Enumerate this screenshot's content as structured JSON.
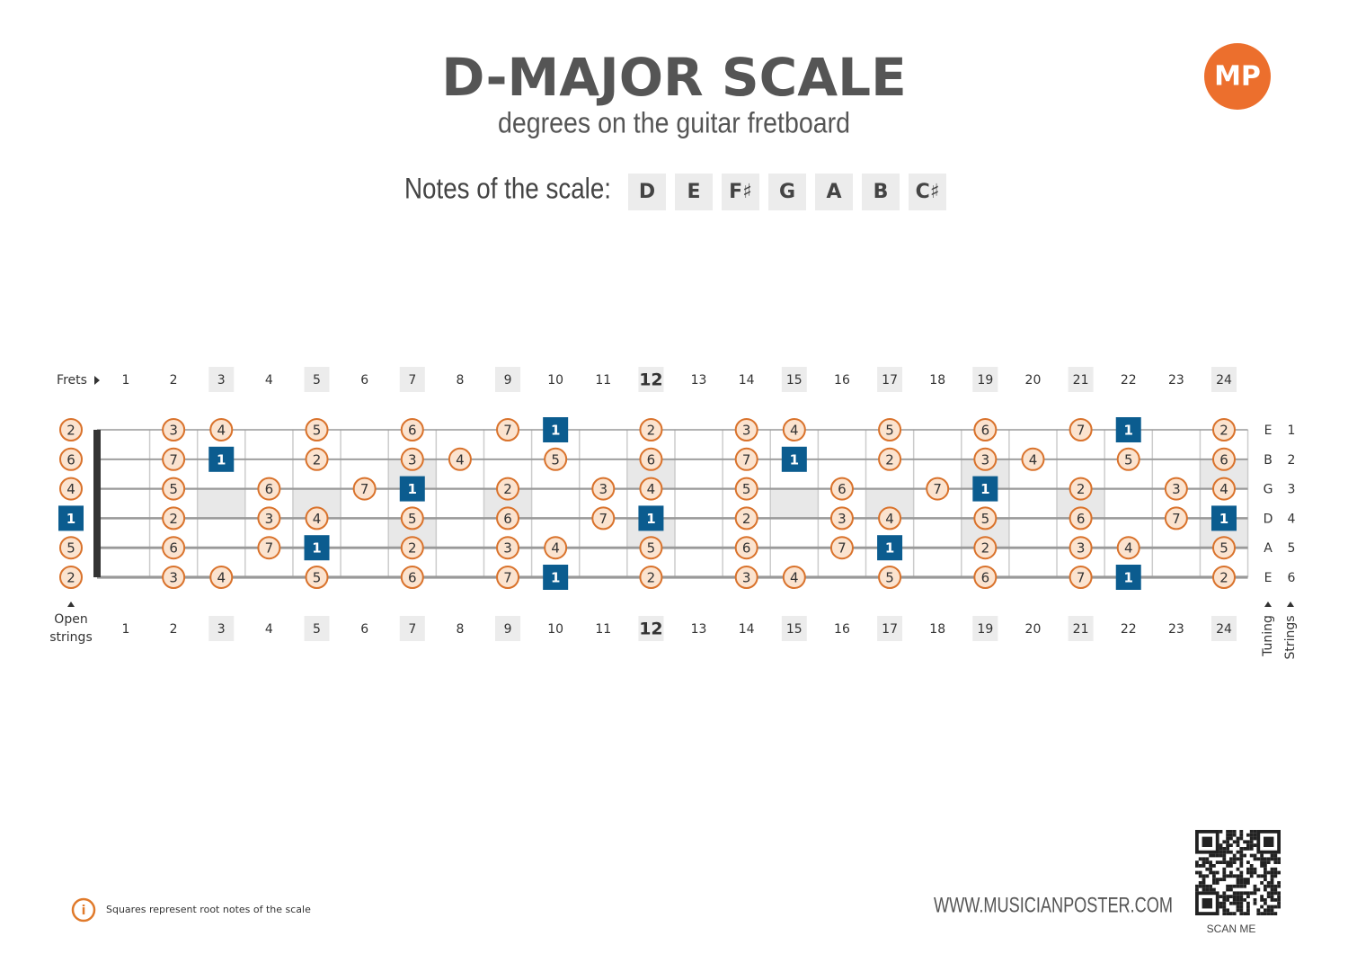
{
  "header": {
    "title": "D-MAJOR SCALE",
    "subtitle": "degrees on the guitar fretboard",
    "notes_label": "Notes of the scale:",
    "notes": [
      "D",
      "E",
      "F♯",
      "G",
      "A",
      "B",
      "C♯"
    ],
    "logo": "MP"
  },
  "fretboard": {
    "frets_label": "Frets",
    "open_label": [
      "Open",
      "strings"
    ],
    "tuning_label": "Tuning",
    "strings_label": "Strings",
    "frets": [
      1,
      2,
      3,
      4,
      5,
      6,
      7,
      8,
      9,
      10,
      11,
      12,
      13,
      14,
      15,
      16,
      17,
      18,
      19,
      20,
      21,
      22,
      23,
      24
    ],
    "marked_frets": [
      3,
      5,
      7,
      9,
      12,
      15,
      17,
      19,
      21,
      24
    ],
    "double_marked_frets": [
      7,
      12,
      19,
      24
    ],
    "bold_fret": 12,
    "strings": [
      {
        "tuning": "E",
        "number": 1,
        "degrees": [
          2,
          null,
          3,
          4,
          null,
          5,
          null,
          6,
          null,
          7,
          1,
          null,
          2,
          null,
          3,
          4,
          null,
          5,
          null,
          6,
          null,
          7,
          1,
          null,
          2
        ]
      },
      {
        "tuning": "B",
        "number": 2,
        "degrees": [
          6,
          null,
          7,
          1,
          null,
          2,
          null,
          3,
          4,
          null,
          5,
          null,
          6,
          null,
          7,
          1,
          null,
          2,
          null,
          3,
          4,
          null,
          5,
          null,
          6
        ]
      },
      {
        "tuning": "G",
        "number": 3,
        "degrees": [
          4,
          null,
          5,
          null,
          6,
          null,
          7,
          1,
          null,
          2,
          null,
          3,
          4,
          null,
          5,
          null,
          6,
          null,
          7,
          1,
          null,
          2,
          null,
          3,
          4
        ]
      },
      {
        "tuning": "D",
        "number": 4,
        "degrees": [
          1,
          null,
          2,
          null,
          3,
          4,
          null,
          5,
          null,
          6,
          null,
          7,
          1,
          null,
          2,
          null,
          3,
          4,
          null,
          5,
          null,
          6,
          null,
          7,
          1
        ]
      },
      {
        "tuning": "A",
        "number": 5,
        "degrees": [
          5,
          null,
          6,
          null,
          7,
          1,
          null,
          2,
          null,
          3,
          4,
          null,
          5,
          null,
          6,
          null,
          7,
          1,
          null,
          2,
          null,
          3,
          4,
          null,
          5
        ]
      },
      {
        "tuning": "E",
        "number": 6,
        "degrees": [
          2,
          null,
          3,
          4,
          null,
          5,
          null,
          6,
          null,
          7,
          1,
          null,
          2,
          null,
          3,
          4,
          null,
          5,
          null,
          6,
          null,
          7,
          1,
          null,
          2
        ]
      }
    ]
  },
  "footer": {
    "note": "Squares represent root notes of the scale",
    "website": "WWW.MUSICIANPOSTER.COM",
    "scan": "SCAN ME"
  }
}
